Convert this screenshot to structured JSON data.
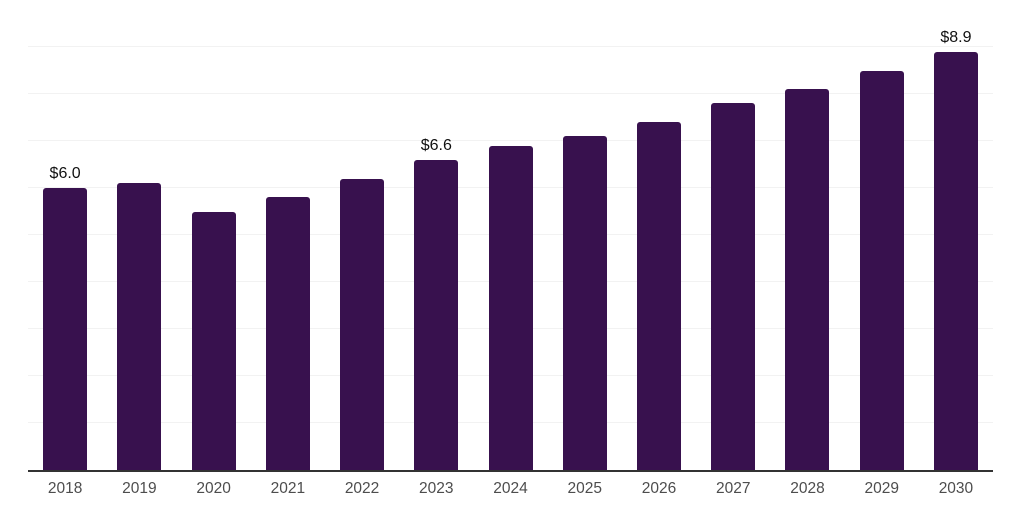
{
  "chart_data": {
    "type": "bar",
    "title": "",
    "xlabel": "",
    "ylabel": "",
    "categories": [
      "2018",
      "2019",
      "2020",
      "2021",
      "2022",
      "2023",
      "2024",
      "2025",
      "2026",
      "2027",
      "2028",
      "2029",
      "2030"
    ],
    "values": [
      6.0,
      6.1,
      5.5,
      5.8,
      6.2,
      6.6,
      6.9,
      7.1,
      7.4,
      7.8,
      8.1,
      8.5,
      8.9
    ],
    "bar_labels": [
      "$6.0",
      "",
      "",
      "",
      "",
      "$6.6",
      "",
      "",
      "",
      "",
      "",
      "",
      "$8.9"
    ],
    "ylim": [
      0,
      10
    ],
    "gridline_step": 1,
    "grid": "horizontal",
    "legend": "none",
    "colors": {
      "bar": "#38114E",
      "gridline": "#f2f2f2",
      "axis_line": "#333333",
      "tick_label": "#4d4d4d",
      "data_label": "#111111",
      "background": "#ffffff"
    }
  }
}
